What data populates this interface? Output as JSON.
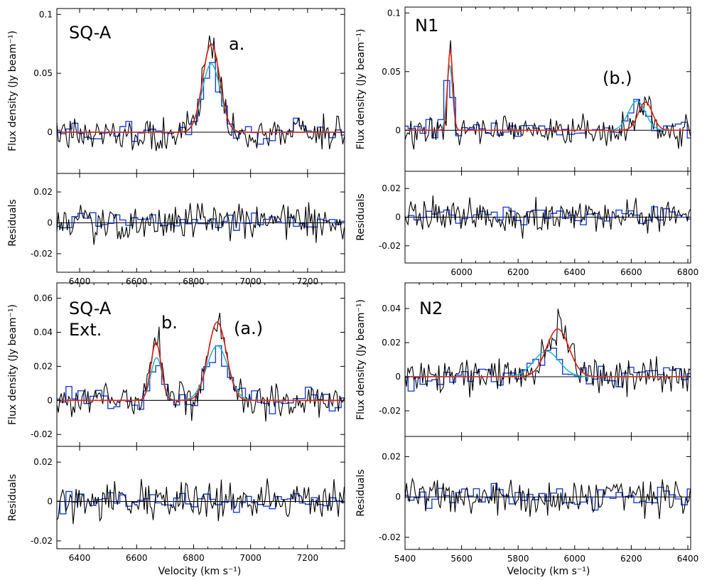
{
  "figure": {
    "xlabel": "Velocity (km s⁻¹)",
    "ylabel_flux": "Flux density (Jy beam⁻¹)",
    "ylabel_resid": "Residuals"
  },
  "chart_data": [
    {
      "type": "line",
      "panel": "top-left",
      "title": "SQ-A",
      "annotations": [
        "a."
      ],
      "xlim": [
        6320,
        7330
      ],
      "xticks": [
        6400,
        6600,
        6800,
        7000,
        7200
      ],
      "xtick_labels": [
        "6400",
        "6600",
        "6800",
        "7000",
        "7200"
      ],
      "show_xlabel": false,
      "show_flux_ylabel": true,
      "flux": {
        "ylim": [
          -0.035,
          0.105
        ],
        "yticks": [
          0,
          0.05,
          0.1
        ],
        "ytick_labels": [
          "0",
          "0.05",
          "0.1"
        ],
        "noise": 0.012,
        "components": [
          {
            "center": 6862,
            "sigma": 30,
            "amp": 0.075
          }
        ],
        "lowres_components": [
          {
            "center": 6862,
            "sigma": 32,
            "amp": 0.058
          }
        ],
        "step_noise": 0.008
      },
      "resid": {
        "ylim": [
          -0.032,
          0.032
        ],
        "yticks": [
          -0.02,
          0,
          0.02
        ],
        "ytick_labels": [
          "-0.02",
          "0",
          "0.02"
        ],
        "noise": 0.01
      }
    },
    {
      "type": "line",
      "panel": "top-right",
      "title": "N1",
      "annotations": [
        "(b.)"
      ],
      "xlim": [
        5800,
        6810
      ],
      "xticks": [
        6000,
        6200,
        6400,
        6600,
        6800
      ],
      "xtick_labels": [
        "6000",
        "6200",
        "6400",
        "6600",
        "6800"
      ],
      "show_xlabel": false,
      "show_flux_ylabel": true,
      "flux": {
        "ylim": [
          -0.035,
          0.105
        ],
        "yticks": [
          0,
          0.05,
          0.1
        ],
        "ytick_labels": [
          "0",
          "0.05",
          "0.1"
        ],
        "noise": 0.012,
        "components": [
          {
            "center": 5960,
            "sigma": 9,
            "amp": 0.068
          },
          {
            "center": 6650,
            "sigma": 25,
            "amp": 0.024
          }
        ],
        "lowres_components": [
          {
            "center": 5958,
            "sigma": 10,
            "amp": 0.055
          },
          {
            "center": 6620,
            "sigma": 30,
            "amp": 0.025
          }
        ],
        "step_noise": 0.008
      },
      "resid": {
        "ylim": [
          -0.032,
          0.032
        ],
        "yticks": [
          -0.02,
          0,
          0.02
        ],
        "ytick_labels": [
          "-0.02",
          "0",
          "0.02"
        ],
        "noise": 0.01
      }
    },
    {
      "type": "line",
      "panel": "bottom-left",
      "title": "SQ-A\nExt.",
      "annotations": [
        "b.",
        "(a.)"
      ],
      "xlim": [
        6320,
        7330
      ],
      "xticks": [
        6400,
        6600,
        6800,
        7000,
        7200
      ],
      "xtick_labels": [
        "6400",
        "6600",
        "6800",
        "7000",
        "7200"
      ],
      "show_xlabel": true,
      "show_flux_ylabel": true,
      "flux": {
        "ylim": [
          -0.027,
          0.069
        ],
        "yticks": [
          -0.02,
          0,
          0.02,
          0.04,
          0.06
        ],
        "ytick_labels": [
          "-0.02",
          "0",
          "0.02",
          "0.04",
          "0.06"
        ],
        "noise": 0.009,
        "components": [
          {
            "center": 6668,
            "sigma": 18,
            "amp": 0.034
          },
          {
            "center": 6883,
            "sigma": 32,
            "amp": 0.046
          }
        ],
        "lowres_components": [
          {
            "center": 6670,
            "sigma": 20,
            "amp": 0.025
          },
          {
            "center": 6883,
            "sigma": 38,
            "amp": 0.032
          }
        ],
        "step_noise": 0.006
      },
      "resid": {
        "ylim": [
          -0.024,
          0.028
        ],
        "yticks": [
          -0.02,
          0,
          0.02
        ],
        "ytick_labels": [
          "-0.02",
          "0",
          "0.02"
        ],
        "noise": 0.008
      }
    },
    {
      "type": "line",
      "panel": "bottom-right",
      "title": "N2",
      "annotations": [],
      "xlim": [
        5400,
        6410
      ],
      "xticks": [
        5400,
        5600,
        5800,
        6000,
        6200,
        6400
      ],
      "xtick_labels": [
        "5400",
        "5600",
        "5800",
        "6000",
        "6200",
        "6400"
      ],
      "show_xlabel": true,
      "show_flux_ylabel": true,
      "flux": {
        "ylim": [
          -0.035,
          0.055
        ],
        "yticks": [
          -0.02,
          0,
          0.02,
          0.04
        ],
        "ytick_labels": [
          "-0.02",
          "0",
          "0.02",
          "0.04"
        ],
        "noise": 0.009,
        "components": [
          {
            "center": 5940,
            "sigma": 40,
            "amp": 0.028
          }
        ],
        "lowres_components": [
          {
            "center": 5900,
            "sigma": 45,
            "amp": 0.015
          }
        ],
        "step_noise": 0.006
      },
      "resid": {
        "ylim": [
          -0.026,
          0.03
        ],
        "yticks": [
          -0.02,
          0,
          0.02
        ],
        "ytick_labels": [
          "-0.02",
          "0",
          "0.02"
        ],
        "noise": 0.008
      }
    }
  ],
  "colors": {
    "data": "#000000",
    "lowres": "#1a3fd8",
    "fit": "#e02010",
    "fit_lowres": "#19b8d0"
  }
}
